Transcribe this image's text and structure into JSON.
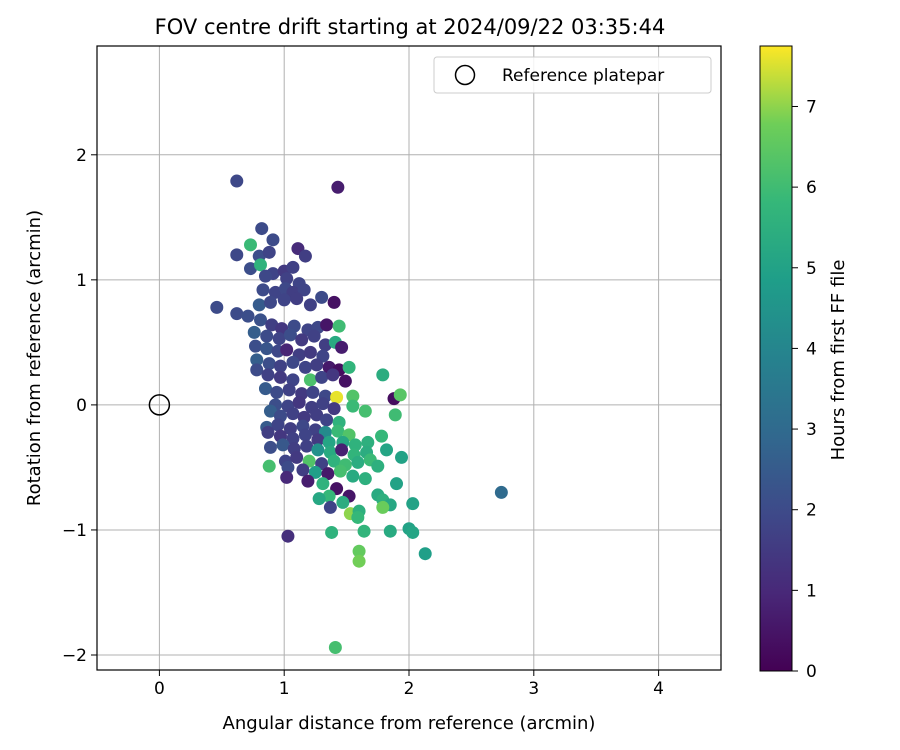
{
  "chart_data": {
    "type": "scatter",
    "title": "FOV centre drift starting at 2024/09/22 03:35:44",
    "xlabel": "Angular distance from reference (arcmin)",
    "ylabel": "Rotation from reference (arcmin)",
    "xlim": [
      -0.5,
      4.5
    ],
    "ylim": [
      -2.12,
      2.87
    ],
    "xticks": [
      0,
      1,
      2,
      3,
      4
    ],
    "yticks": [
      -2,
      -1,
      0,
      1,
      2
    ],
    "xtick_labels": [
      "0",
      "1",
      "2",
      "3",
      "4"
    ],
    "ytick_labels": [
      "−2",
      "−1",
      "0",
      "1",
      "2"
    ],
    "grid": true,
    "legend": {
      "position": "top-right",
      "entries": [
        "Reference platepar"
      ]
    },
    "colorbar": {
      "label": "Hours from first FF file",
      "colormap": "viridis",
      "range": [
        0,
        7.75
      ],
      "ticks": [
        0,
        1,
        2,
        3,
        4,
        5,
        6,
        7
      ],
      "tick_labels": [
        "0",
        "1",
        "2",
        "3",
        "4",
        "5",
        "6",
        "7"
      ]
    },
    "reference_point": {
      "name": "Reference platepar",
      "x": 0,
      "y": 0
    },
    "points": [
      {
        "x": 0.62,
        "y": 1.79,
        "t": 1.9
      },
      {
        "x": 1.43,
        "y": 1.74,
        "t": 0.7
      },
      {
        "x": 0.82,
        "y": 1.41,
        "t": 2.0
      },
      {
        "x": 0.73,
        "y": 1.28,
        "t": 5.9
      },
      {
        "x": 0.91,
        "y": 1.32,
        "t": 2.0
      },
      {
        "x": 1.11,
        "y": 1.25,
        "t": 1.1
      },
      {
        "x": 0.62,
        "y": 1.2,
        "t": 1.9
      },
      {
        "x": 0.8,
        "y": 1.19,
        "t": 2.1
      },
      {
        "x": 0.88,
        "y": 1.22,
        "t": 1.8
      },
      {
        "x": 1.17,
        "y": 1.19,
        "t": 1.6
      },
      {
        "x": 0.73,
        "y": 1.09,
        "t": 2.1
      },
      {
        "x": 0.81,
        "y": 1.12,
        "t": 5.6
      },
      {
        "x": 0.91,
        "y": 1.05,
        "t": 1.8
      },
      {
        "x": 1.0,
        "y": 1.07,
        "t": 1.5
      },
      {
        "x": 1.07,
        "y": 1.1,
        "t": 1.7
      },
      {
        "x": 0.85,
        "y": 1.03,
        "t": 1.9
      },
      {
        "x": 1.02,
        "y": 1.01,
        "t": 1.7
      },
      {
        "x": 1.12,
        "y": 0.97,
        "t": 1.8
      },
      {
        "x": 0.83,
        "y": 0.92,
        "t": 2.0
      },
      {
        "x": 0.93,
        "y": 0.9,
        "t": 1.8
      },
      {
        "x": 1.01,
        "y": 0.93,
        "t": 1.9
      },
      {
        "x": 1.07,
        "y": 0.9,
        "t": 1.6
      },
      {
        "x": 1.16,
        "y": 0.92,
        "t": 1.8
      },
      {
        "x": 1.3,
        "y": 0.86,
        "t": 2.0
      },
      {
        "x": 1.4,
        "y": 0.82,
        "t": 0.4
      },
      {
        "x": 0.46,
        "y": 0.78,
        "t": 2.0
      },
      {
        "x": 0.8,
        "y": 0.8,
        "t": 2.5
      },
      {
        "x": 0.89,
        "y": 0.82,
        "t": 1.9
      },
      {
        "x": 1.0,
        "y": 0.84,
        "t": 1.8
      },
      {
        "x": 1.1,
        "y": 0.85,
        "t": 1.6
      },
      {
        "x": 1.21,
        "y": 0.8,
        "t": 1.7
      },
      {
        "x": 0.62,
        "y": 0.73,
        "t": 2.0
      },
      {
        "x": 0.71,
        "y": 0.71,
        "t": 2.1
      },
      {
        "x": 0.81,
        "y": 0.68,
        "t": 2.2
      },
      {
        "x": 0.9,
        "y": 0.64,
        "t": 1.6
      },
      {
        "x": 0.98,
        "y": 0.61,
        "t": 1.4
      },
      {
        "x": 1.08,
        "y": 0.63,
        "t": 2.0
      },
      {
        "x": 1.19,
        "y": 0.6,
        "t": 1.8
      },
      {
        "x": 1.27,
        "y": 0.62,
        "t": 1.9
      },
      {
        "x": 1.34,
        "y": 0.64,
        "t": 0.5
      },
      {
        "x": 1.44,
        "y": 0.63,
        "t": 6.0
      },
      {
        "x": 0.76,
        "y": 0.58,
        "t": 2.6
      },
      {
        "x": 0.86,
        "y": 0.55,
        "t": 2.0
      },
      {
        "x": 0.96,
        "y": 0.53,
        "t": 1.8
      },
      {
        "x": 1.05,
        "y": 0.56,
        "t": 2.1
      },
      {
        "x": 1.14,
        "y": 0.52,
        "t": 1.5
      },
      {
        "x": 1.24,
        "y": 0.55,
        "t": 1.7
      },
      {
        "x": 1.33,
        "y": 0.48,
        "t": 1.6
      },
      {
        "x": 1.41,
        "y": 0.5,
        "t": 5.3
      },
      {
        "x": 1.46,
        "y": 0.46,
        "t": 0.7
      },
      {
        "x": 0.77,
        "y": 0.47,
        "t": 2.1
      },
      {
        "x": 0.86,
        "y": 0.45,
        "t": 2.3
      },
      {
        "x": 0.95,
        "y": 0.43,
        "t": 1.9
      },
      {
        "x": 1.02,
        "y": 0.44,
        "t": 0.9
      },
      {
        "x": 1.12,
        "y": 0.4,
        "t": 1.6
      },
      {
        "x": 1.21,
        "y": 0.42,
        "t": 1.5
      },
      {
        "x": 1.31,
        "y": 0.39,
        "t": 1.8
      },
      {
        "x": 0.78,
        "y": 0.36,
        "t": 2.6
      },
      {
        "x": 0.88,
        "y": 0.33,
        "t": 2.1
      },
      {
        "x": 0.97,
        "y": 0.31,
        "t": 1.7
      },
      {
        "x": 1.07,
        "y": 0.34,
        "t": 1.9
      },
      {
        "x": 1.17,
        "y": 0.3,
        "t": 1.8
      },
      {
        "x": 1.26,
        "y": 0.32,
        "t": 1.6
      },
      {
        "x": 1.36,
        "y": 0.3,
        "t": 0.6
      },
      {
        "x": 1.44,
        "y": 0.28,
        "t": 0.3
      },
      {
        "x": 1.52,
        "y": 0.3,
        "t": 5.7
      },
      {
        "x": 0.78,
        "y": 0.28,
        "t": 2.0
      },
      {
        "x": 0.87,
        "y": 0.24,
        "t": 1.7
      },
      {
        "x": 0.97,
        "y": 0.22,
        "t": 1.5
      },
      {
        "x": 1.07,
        "y": 0.2,
        "t": 1.8
      },
      {
        "x": 1.21,
        "y": 0.2,
        "t": 6.2
      },
      {
        "x": 1.3,
        "y": 0.22,
        "t": 1.8
      },
      {
        "x": 1.39,
        "y": 0.24,
        "t": 1.4
      },
      {
        "x": 1.49,
        "y": 0.19,
        "t": 0.4
      },
      {
        "x": 1.79,
        "y": 0.24,
        "t": 5.4
      },
      {
        "x": 0.85,
        "y": 0.13,
        "t": 2.5
      },
      {
        "x": 0.94,
        "y": 0.1,
        "t": 2.0
      },
      {
        "x": 1.04,
        "y": 0.12,
        "t": 1.7
      },
      {
        "x": 1.14,
        "y": 0.09,
        "t": 1.5
      },
      {
        "x": 1.23,
        "y": 0.1,
        "t": 1.8
      },
      {
        "x": 1.33,
        "y": 0.07,
        "t": 1.9
      },
      {
        "x": 1.42,
        "y": 0.06,
        "t": 7.6
      },
      {
        "x": 1.55,
        "y": 0.07,
        "t": 6.3
      },
      {
        "x": 1.88,
        "y": 0.05,
        "t": 0.3
      },
      {
        "x": 1.93,
        "y": 0.08,
        "t": 6.4
      },
      {
        "x": 0.93,
        "y": 0.0,
        "t": 2.1
      },
      {
        "x": 1.03,
        "y": -0.01,
        "t": 1.8
      },
      {
        "x": 1.12,
        "y": 0.02,
        "t": 1.4
      },
      {
        "x": 1.22,
        "y": -0.02,
        "t": 1.6
      },
      {
        "x": 1.31,
        "y": 0.01,
        "t": 1.7
      },
      {
        "x": 1.4,
        "y": -0.03,
        "t": 1.5
      },
      {
        "x": 1.55,
        "y": -0.01,
        "t": 5.9
      },
      {
        "x": 1.65,
        "y": -0.05,
        "t": 6.1
      },
      {
        "x": 1.89,
        "y": -0.08,
        "t": 6.0
      },
      {
        "x": 0.89,
        "y": -0.05,
        "t": 2.6
      },
      {
        "x": 0.97,
        "y": -0.09,
        "t": 2.0
      },
      {
        "x": 1.07,
        "y": -0.07,
        "t": 1.7
      },
      {
        "x": 1.16,
        "y": -0.1,
        "t": 1.5
      },
      {
        "x": 1.26,
        "y": -0.08,
        "t": 1.6
      },
      {
        "x": 1.34,
        "y": -0.12,
        "t": 1.8
      },
      {
        "x": 1.44,
        "y": -0.14,
        "t": 5.6
      },
      {
        "x": 0.86,
        "y": -0.18,
        "t": 2.5
      },
      {
        "x": 0.95,
        "y": -0.16,
        "t": 1.8
      },
      {
        "x": 1.05,
        "y": -0.19,
        "t": 1.6
      },
      {
        "x": 1.15,
        "y": -0.17,
        "t": 1.9
      },
      {
        "x": 1.25,
        "y": -0.2,
        "t": 1.7
      },
      {
        "x": 1.33,
        "y": -0.22,
        "t": 4.2
      },
      {
        "x": 1.43,
        "y": -0.21,
        "t": 5.9
      },
      {
        "x": 1.52,
        "y": -0.24,
        "t": 6.3
      },
      {
        "x": 0.87,
        "y": -0.22,
        "t": 1.6
      },
      {
        "x": 0.97,
        "y": -0.25,
        "t": 1.4
      },
      {
        "x": 1.07,
        "y": -0.27,
        "t": 1.7
      },
      {
        "x": 1.17,
        "y": -0.24,
        "t": 1.8
      },
      {
        "x": 1.27,
        "y": -0.28,
        "t": 1.5
      },
      {
        "x": 1.36,
        "y": -0.3,
        "t": 5.1
      },
      {
        "x": 1.47,
        "y": -0.3,
        "t": 5.2
      },
      {
        "x": 1.57,
        "y": -0.32,
        "t": 5.6
      },
      {
        "x": 1.67,
        "y": -0.3,
        "t": 5.5
      },
      {
        "x": 1.78,
        "y": -0.25,
        "t": 5.8
      },
      {
        "x": 0.89,
        "y": -0.34,
        "t": 2.1
      },
      {
        "x": 0.99,
        "y": -0.32,
        "t": 2.4
      },
      {
        "x": 1.08,
        "y": -0.35,
        "t": 1.6
      },
      {
        "x": 1.18,
        "y": -0.33,
        "t": 1.7
      },
      {
        "x": 1.27,
        "y": -0.36,
        "t": 4.4
      },
      {
        "x": 1.37,
        "y": -0.38,
        "t": 5.3
      },
      {
        "x": 1.46,
        "y": -0.36,
        "t": 0.8
      },
      {
        "x": 1.56,
        "y": -0.4,
        "t": 5.7
      },
      {
        "x": 1.66,
        "y": -0.38,
        "t": 5.4
      },
      {
        "x": 1.82,
        "y": -0.36,
        "t": 5.1
      },
      {
        "x": 1.94,
        "y": -0.42,
        "t": 5.0
      },
      {
        "x": 1.01,
        "y": -0.45,
        "t": 1.8
      },
      {
        "x": 1.1,
        "y": -0.42,
        "t": 1.5
      },
      {
        "x": 1.2,
        "y": -0.45,
        "t": 6.3
      },
      {
        "x": 1.3,
        "y": -0.47,
        "t": 1.7
      },
      {
        "x": 1.4,
        "y": -0.45,
        "t": 5.6
      },
      {
        "x": 1.49,
        "y": -0.48,
        "t": 6.0
      },
      {
        "x": 1.59,
        "y": -0.46,
        "t": 5.4
      },
      {
        "x": 1.69,
        "y": -0.44,
        "t": 5.9
      },
      {
        "x": 1.75,
        "y": -0.49,
        "t": 5.5
      },
      {
        "x": 0.88,
        "y": -0.49,
        "t": 6.1
      },
      {
        "x": 1.03,
        "y": -0.5,
        "t": 2.0
      },
      {
        "x": 1.15,
        "y": -0.52,
        "t": 1.6
      },
      {
        "x": 1.25,
        "y": -0.54,
        "t": 4.9
      },
      {
        "x": 1.35,
        "y": -0.55,
        "t": 0.6
      },
      {
        "x": 1.45,
        "y": -0.53,
        "t": 6.1
      },
      {
        "x": 1.55,
        "y": -0.57,
        "t": 5.3
      },
      {
        "x": 1.65,
        "y": -0.59,
        "t": 5.5
      },
      {
        "x": 1.02,
        "y": -0.58,
        "t": 1.0
      },
      {
        "x": 1.19,
        "y": -0.61,
        "t": 0.7
      },
      {
        "x": 1.31,
        "y": -0.63,
        "t": 5.6
      },
      {
        "x": 1.42,
        "y": -0.67,
        "t": 0.4
      },
      {
        "x": 1.52,
        "y": -0.73,
        "t": 0.5
      },
      {
        "x": 1.36,
        "y": -0.73,
        "t": 5.8
      },
      {
        "x": 1.28,
        "y": -0.75,
        "t": 5.2
      },
      {
        "x": 1.47,
        "y": -0.78,
        "t": 5.4
      },
      {
        "x": 1.9,
        "y": -0.63,
        "t": 5.0
      },
      {
        "x": 1.75,
        "y": -0.72,
        "t": 5.3
      },
      {
        "x": 1.79,
        "y": -0.76,
        "t": 5.5
      },
      {
        "x": 1.85,
        "y": -0.8,
        "t": 5.2
      },
      {
        "x": 2.03,
        "y": -0.79,
        "t": 5.0
      },
      {
        "x": 1.79,
        "y": -0.82,
        "t": 6.7
      },
      {
        "x": 1.37,
        "y": -0.82,
        "t": 1.8
      },
      {
        "x": 1.53,
        "y": -0.87,
        "t": 7.0
      },
      {
        "x": 1.6,
        "y": -0.85,
        "t": 5.5
      },
      {
        "x": 1.59,
        "y": -0.9,
        "t": 5.8
      },
      {
        "x": 2.74,
        "y": -0.7,
        "t": 3.0
      },
      {
        "x": 2.0,
        "y": -0.99,
        "t": 5.0
      },
      {
        "x": 2.03,
        "y": -1.02,
        "t": 5.1
      },
      {
        "x": 1.64,
        "y": -1.01,
        "t": 5.7
      },
      {
        "x": 1.85,
        "y": -1.01,
        "t": 5.3
      },
      {
        "x": 1.38,
        "y": -1.02,
        "t": 5.6
      },
      {
        "x": 1.03,
        "y": -1.05,
        "t": 1.2
      },
      {
        "x": 2.13,
        "y": -1.19,
        "t": 4.9
      },
      {
        "x": 1.6,
        "y": -1.17,
        "t": 6.6
      },
      {
        "x": 1.6,
        "y": -1.25,
        "t": 6.8
      },
      {
        "x": 1.41,
        "y": -1.94,
        "t": 6.1
      }
    ]
  }
}
